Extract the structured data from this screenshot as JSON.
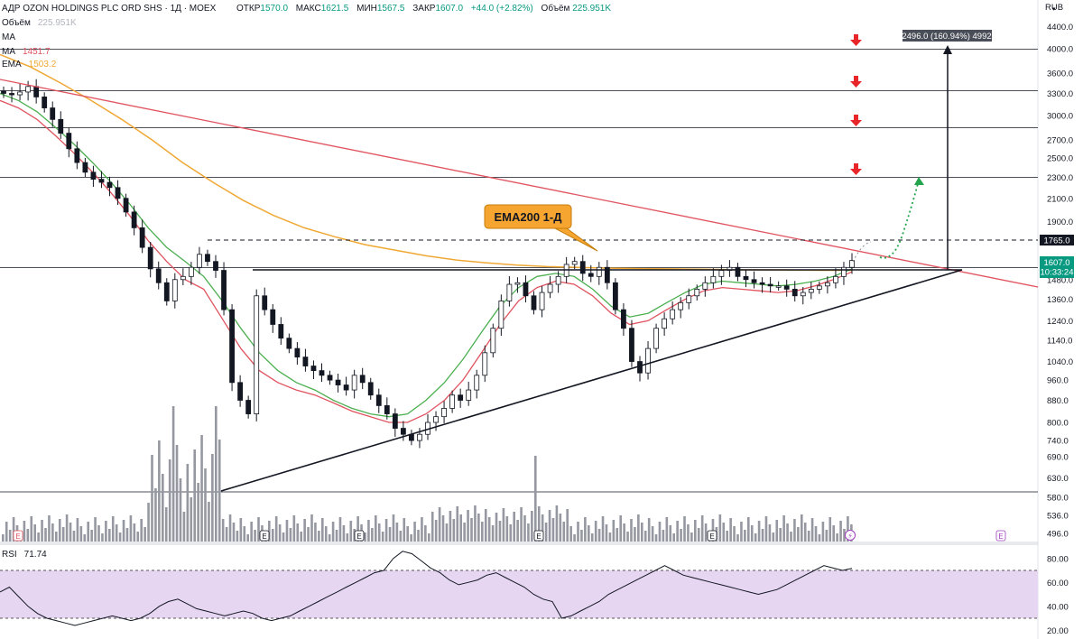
{
  "header": {
    "symbol": "АДР OZON HOLDINGS PLC ORD SHS · 1Д · MOEX",
    "open_label": "ОТКР",
    "open": "1570.0",
    "high_label": "МАКС",
    "high": "1621.5",
    "low_label": "МИН",
    "low": "1567.5",
    "close_label": "ЗАКР",
    "close": "1607.0",
    "change": "+44.0 (+2.82%)",
    "volume_label": "Объём",
    "volume": "225.951K"
  },
  "indicators": {
    "volume": {
      "label": "Объём",
      "value": "225.951K"
    },
    "ma1": {
      "label": "MA",
      "value": ""
    },
    "ma2": {
      "label": "MA",
      "value": "1451.7"
    },
    "ema": {
      "label": "EMA",
      "value": "1503.2"
    },
    "rsi": {
      "label": "RSI",
      "value": "71.74"
    }
  },
  "annotations": {
    "ema_callout": "EMA200 1-Д",
    "measure": "2496.0 (160.94%) 4992",
    "level_tag": "1765.0",
    "price_tag": "1607.0",
    "timer_tag": "10:33:24"
  },
  "colors": {
    "accent_green": "#089981",
    "ma_red": "#e0535f",
    "ma_green": "#4caf50",
    "ema_orange": "#f0a835",
    "trend_red": "#e0535f",
    "callout_bg": "#f7a531",
    "rsi_band": "#e6d6f2",
    "rsi_line": "#131722",
    "arrow_red": "#e8262a",
    "target_green": "#22a44c"
  },
  "chart_data": {
    "type": "candlestick",
    "price_axis": {
      "unit": "RUB",
      "scale": "log",
      "ticks": [
        4400,
        4000,
        3600,
        3300,
        3000,
        2700,
        2500,
        2300,
        2100,
        1900,
        1765,
        1607,
        1480,
        1360,
        1240,
        1140,
        1040,
        960,
        880,
        800,
        740,
        690,
        630,
        580,
        536,
        496
      ]
    },
    "horizontal_levels": [
      4000,
      3350,
      2850,
      2300,
      1560
    ],
    "dashed_level": 1765,
    "close": [
      3300,
      3280,
      3320,
      3400,
      3250,
      3100,
      2950,
      2780,
      2600,
      2450,
      2350,
      2280,
      2250,
      2200,
      2100,
      1980,
      1850,
      1700,
      1550,
      1460,
      1350,
      1480,
      1500,
      1560,
      1650,
      1600,
      1540,
      1300,
      950,
      880,
      830,
      1380,
      1300,
      1220,
      1150,
      1100,
      1060,
      1020,
      1000,
      980,
      960,
      940,
      920,
      980,
      950,
      900,
      860,
      830,
      780,
      760,
      740,
      760,
      800,
      820,
      850,
      900,
      880,
      920,
      980,
      1080,
      1200,
      1350,
      1450,
      1460,
      1380,
      1300,
      1400,
      1450,
      1500,
      1580,
      1600,
      1520,
      1500,
      1560,
      1460,
      1300,
      1200,
      1040,
      990,
      1100,
      1200,
      1250,
      1300,
      1340,
      1380,
      1420,
      1460,
      1500,
      1540,
      1560,
      1500,
      1480,
      1460,
      1450,
      1440,
      1440,
      1420,
      1380,
      1400,
      1420,
      1440,
      1460,
      1500,
      1560,
      1607
    ],
    "ma_red": [
      3200,
      3100,
      2950,
      2750,
      2550,
      2350,
      2150,
      1950,
      1750,
      1600,
      1480,
      1420,
      1250,
      1100,
      1000,
      950,
      920,
      900,
      870,
      840,
      820,
      800,
      800,
      830,
      880,
      960,
      1080,
      1220,
      1350,
      1430,
      1470,
      1450,
      1380,
      1280,
      1220,
      1240,
      1300,
      1360,
      1410,
      1430,
      1420,
      1410,
      1400,
      1410,
      1440,
      1480,
      1530
    ],
    "ma_green": [
      3300,
      3200,
      3050,
      2850,
      2650,
      2450,
      2250,
      2050,
      1850,
      1700,
      1600,
      1500,
      1350,
      1200,
      1080,
      1000,
      950,
      920,
      880,
      850,
      830,
      820,
      830,
      880,
      950,
      1050,
      1180,
      1320,
      1430,
      1500,
      1520,
      1500,
      1420,
      1320,
      1260,
      1280,
      1340,
      1400,
      1450,
      1470,
      1460,
      1450,
      1440,
      1450,
      1470,
      1500,
      1550
    ],
    "ema200": [
      3900,
      3700,
      3450,
      3200,
      2950,
      2700,
      2450,
      2250,
      2080,
      1950,
      1850,
      1780,
      1720,
      1680,
      1640,
      1610,
      1590,
      1575,
      1565,
      1560,
      1555,
      1552,
      1550,
      1548,
      1545,
      1543,
      1542,
      1540,
      1540
    ],
    "trendlines": [
      {
        "name": "descending-resistance",
        "from": [
          0,
          3350
        ],
        "to": [
          1200,
          1440
        ]
      },
      {
        "name": "rising-support",
        "from": [
          245,
          596
        ],
        "to": [
          1065,
          1560
        ]
      }
    ],
    "targets": [
      {
        "label": "1765.0",
        "style": "dashed"
      },
      {
        "label": "measured move",
        "value": "2496.0 (160.94%) 4992"
      }
    ],
    "volume_events": [
      "E",
      "E",
      "E",
      "E",
      "E",
      "E"
    ],
    "rsi": {
      "value": 71.74,
      "ticks": [
        80,
        60,
        40,
        20
      ],
      "band": [
        30,
        70
      ],
      "series": [
        52,
        56,
        48,
        40,
        34,
        30,
        28,
        26,
        24,
        26,
        28,
        30,
        32,
        30,
        28,
        30,
        34,
        40,
        44,
        46,
        42,
        38,
        36,
        34,
        32,
        34,
        36,
        34,
        30,
        28,
        30,
        32,
        36,
        40,
        44,
        48,
        52,
        56,
        60,
        64,
        68,
        70,
        80,
        86,
        84,
        78,
        72,
        68,
        62,
        58,
        60,
        62,
        66,
        68,
        64,
        60,
        56,
        50,
        46,
        44,
        30,
        32,
        36,
        40,
        44,
        50,
        54,
        58,
        62,
        66,
        70,
        74,
        70,
        66,
        64,
        62,
        60,
        58,
        56,
        54,
        52,
        50,
        52,
        54,
        58,
        62,
        66,
        70,
        74,
        72,
        70,
        71.74
      ]
    }
  }
}
